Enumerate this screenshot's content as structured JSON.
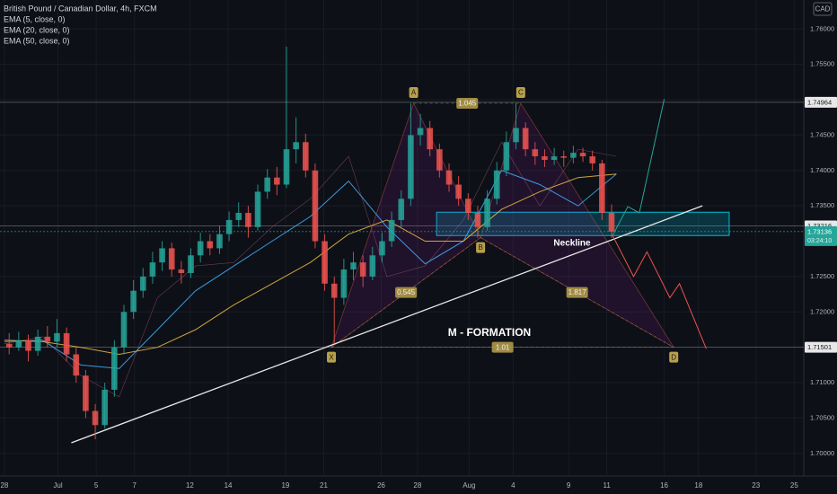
{
  "chart_data": {
    "type": "candlestick",
    "title": "British Pound / Canadian Dollar, 4h, FXCM",
    "currency": "CAD",
    "up_color": "#26a69a",
    "down_color": "#ef5350",
    "grid": true,
    "xlim": [
      -0.23,
      41.8
    ],
    "ylim": [
      1.6968,
      1.7641
    ],
    "xticks": [
      {
        "value": 0,
        "label": "28"
      },
      {
        "value": 2.8,
        "label": "Jul"
      },
      {
        "value": 4.8,
        "label": "5"
      },
      {
        "value": 6.8,
        "label": "7"
      },
      {
        "value": 9.7,
        "label": "12"
      },
      {
        "value": 11.7,
        "label": "14"
      },
      {
        "value": 14.7,
        "label": "19"
      },
      {
        "value": 16.7,
        "label": "21"
      },
      {
        "value": 19.7,
        "label": "26"
      },
      {
        "value": 21.6,
        "label": "28"
      },
      {
        "value": 24.3,
        "label": "Aug"
      },
      {
        "value": 26.6,
        "label": "4"
      },
      {
        "value": 29.5,
        "label": "9"
      },
      {
        "value": 31.5,
        "label": "11"
      },
      {
        "value": 34.5,
        "label": "16"
      },
      {
        "value": 36.3,
        "label": "18"
      },
      {
        "value": 39.3,
        "label": "23"
      },
      {
        "value": 41.3,
        "label": "25"
      }
    ],
    "yticks": [
      {
        "value": 1.7,
        "label": "1.70000"
      },
      {
        "value": 1.705,
        "label": "1.70500"
      },
      {
        "value": 1.71,
        "label": "1.71000"
      },
      {
        "value": 1.72,
        "label": "1.72000"
      },
      {
        "value": 1.725,
        "label": "1.72500"
      },
      {
        "value": 1.735,
        "label": "1.73500"
      },
      {
        "value": 1.74,
        "label": "1.74000"
      },
      {
        "value": 1.745,
        "label": "1.74500"
      },
      {
        "value": 1.75,
        "label": "1.75000"
      },
      {
        "value": 1.755,
        "label": "1.75500"
      },
      {
        "value": 1.76,
        "label": "1.76000"
      }
    ],
    "x": [
      0.25,
      0.75,
      1.25,
      1.75,
      2.25,
      2.75,
      3.25,
      3.75,
      4.25,
      4.75,
      5.25,
      5.75,
      6.25,
      6.75,
      7.25,
      7.75,
      8.25,
      8.75,
      9.25,
      9.75,
      10.25,
      10.75,
      11.25,
      11.75,
      12.25,
      12.75,
      13.25,
      13.75,
      14.25,
      14.75,
      15.25,
      15.75,
      16.25,
      16.75,
      17.25,
      17.75,
      18.25,
      18.75,
      19.25,
      19.75,
      20.25,
      20.75,
      21.25,
      21.75,
      22.25,
      22.75,
      23.25,
      23.75,
      24.25,
      24.75,
      25.25,
      25.75,
      26.25,
      26.75,
      27.25,
      27.75,
      28.25,
      28.75,
      29.25,
      29.75,
      30.25,
      30.75,
      31.25,
      31.75
    ],
    "open": [
      1.7155,
      1.715,
      1.716,
      1.7145,
      1.7165,
      1.7158,
      1.717,
      1.714,
      1.711,
      1.706,
      1.704,
      1.709,
      1.715,
      1.72,
      1.723,
      1.725,
      1.727,
      1.729,
      1.726,
      1.7255,
      1.728,
      1.73,
      1.729,
      1.731,
      1.733,
      1.734,
      1.732,
      1.737,
      1.739,
      1.738,
      1.743,
      1.744,
      1.74,
      1.73,
      1.724,
      1.722,
      1.726,
      1.727,
      1.725,
      1.728,
      1.73,
      1.733,
      1.736,
      1.745,
      1.746,
      1.743,
      1.74,
      1.738,
      1.736,
      1.734,
      1.732,
      1.736,
      1.74,
      1.744,
      1.746,
      1.743,
      1.742,
      1.7415,
      1.742,
      1.7418,
      1.7425,
      1.742,
      1.741,
      1.734
    ],
    "high": [
      1.717,
      1.7172,
      1.7168,
      1.7175,
      1.718,
      1.719,
      1.7178,
      1.715,
      1.7118,
      1.707,
      1.71,
      1.716,
      1.721,
      1.7245,
      1.7262,
      1.7285,
      1.73,
      1.7298,
      1.7272,
      1.729,
      1.7312,
      1.731,
      1.7322,
      1.7342,
      1.7355,
      1.735,
      1.738,
      1.7402,
      1.7405,
      1.7575,
      1.7475,
      1.7452,
      1.741,
      1.731,
      1.725,
      1.7275,
      1.7285,
      1.728,
      1.7292,
      1.7312,
      1.7342,
      1.7372,
      1.7495,
      1.748,
      1.747,
      1.7438,
      1.741,
      1.7392,
      1.7368,
      1.735,
      1.7372,
      1.7412,
      1.7455,
      1.7495,
      1.7468,
      1.744,
      1.743,
      1.7432,
      1.7428,
      1.7435,
      1.7432,
      1.7428,
      1.7415,
      1.7352
    ],
    "low": [
      1.714,
      1.7145,
      1.713,
      1.7138,
      1.715,
      1.715,
      1.713,
      1.71,
      1.705,
      1.702,
      1.7035,
      1.708,
      1.714,
      1.719,
      1.722,
      1.724,
      1.7258,
      1.725,
      1.724,
      1.7248,
      1.727,
      1.728,
      1.7282,
      1.73,
      1.732,
      1.7305,
      1.7315,
      1.736,
      1.7365,
      1.7375,
      1.741,
      1.739,
      1.729,
      1.723,
      1.7155,
      1.721,
      1.7245,
      1.7235,
      1.7245,
      1.727,
      1.7292,
      1.732,
      1.735,
      1.7435,
      1.742,
      1.739,
      1.737,
      1.735,
      1.733,
      1.7305,
      1.7315,
      1.7352,
      1.7392,
      1.743,
      1.742,
      1.7408,
      1.7405,
      1.7408,
      1.7405,
      1.741,
      1.7412,
      1.74,
      1.733,
      1.7305
    ],
    "close": [
      1.715,
      1.716,
      1.7145,
      1.7165,
      1.7158,
      1.717,
      1.714,
      1.711,
      1.706,
      1.704,
      1.709,
      1.715,
      1.72,
      1.723,
      1.725,
      1.727,
      1.729,
      1.726,
      1.7255,
      1.728,
      1.73,
      1.729,
      1.731,
      1.733,
      1.734,
      1.732,
      1.737,
      1.739,
      1.738,
      1.743,
      1.744,
      1.74,
      1.73,
      1.724,
      1.722,
      1.726,
      1.727,
      1.725,
      1.728,
      1.73,
      1.733,
      1.736,
      1.745,
      1.746,
      1.743,
      1.74,
      1.738,
      1.736,
      1.734,
      1.732,
      1.736,
      1.74,
      1.744,
      1.746,
      1.743,
      1.742,
      1.7415,
      1.742,
      1.7418,
      1.7425,
      1.742,
      1.741,
      1.734,
      1.73136
    ],
    "indicators": [
      {
        "name": "EMA (5, close, 0)",
        "color": "#c06a8a",
        "x": [
          0,
          2,
          4,
          6,
          8,
          10,
          12,
          14,
          16,
          18,
          20,
          22,
          24,
          26,
          28,
          30,
          32
        ],
        "values": [
          1.7155,
          1.7165,
          1.711,
          1.708,
          1.722,
          1.7265,
          1.727,
          1.732,
          1.736,
          1.742,
          1.725,
          1.7265,
          1.733,
          1.744,
          1.735,
          1.743,
          1.742
        ]
      },
      {
        "name": "EMA (20, close, 0)",
        "color": "#3fa9f5",
        "x": [
          0,
          2,
          4,
          6,
          8,
          10,
          12,
          14,
          16,
          18,
          20,
          22,
          24,
          26,
          28,
          30,
          32
        ],
        "values": [
          1.7158,
          1.716,
          1.7125,
          1.712,
          1.7175,
          1.723,
          1.7265,
          1.73,
          1.7335,
          1.7385,
          1.732,
          1.7268,
          1.73,
          1.74,
          1.738,
          1.735,
          1.7395
        ]
      },
      {
        "name": "EMA (50, close, 0)",
        "color": "#e0b640",
        "x": [
          0,
          2,
          4,
          6,
          8,
          10,
          12,
          14,
          16,
          18,
          20,
          22,
          24,
          26,
          28,
          30,
          32
        ],
        "values": [
          1.716,
          1.7158,
          1.715,
          1.714,
          1.715,
          1.7175,
          1.721,
          1.724,
          1.727,
          1.731,
          1.733,
          1.73,
          1.73,
          1.7345,
          1.737,
          1.739,
          1.7395
        ]
      }
    ],
    "levels": [
      1.74964,
      1.73216,
      1.73136,
      1.71501
    ],
    "countdown": "03:24:10",
    "zone": {
      "color": "#00bcd4",
      "x": [
        22.6,
        37.9
      ],
      "y": [
        1.7308,
        1.7341
      ]
    },
    "trendline": {
      "color": "#e8e8e8",
      "x": [
        3.5,
        36.5
      ],
      "y": [
        1.7015,
        1.735
      ]
    },
    "projections": [
      {
        "color": "#26a69a",
        "x": [
          31.8,
          32.6,
          33.2,
          34.5
        ],
        "y": [
          1.7308,
          1.7349,
          1.734,
          1.7501
        ]
      },
      {
        "color": "#ef5350",
        "x": [
          31.8,
          32.9,
          33.6,
          34.8,
          35.3,
          36.7
        ],
        "y": [
          1.7308,
          1.725,
          1.7285,
          1.722,
          1.724,
          1.7148
        ]
      }
    ],
    "pattern": {
      "color": "#b8a04a",
      "labels": [
        "X",
        "A",
        "B",
        "C",
        "D"
      ],
      "x": [
        17.1,
        21.4,
        24.9,
        27.0,
        35.0
      ],
      "y": [
        1.715,
        1.7495,
        1.7305,
        1.7495,
        1.715
      ],
      "ratios": [
        "1.045",
        "0.545",
        "1.817",
        "1.01"
      ]
    },
    "annotations": [
      "Neckline",
      "M - FORMATION"
    ]
  }
}
